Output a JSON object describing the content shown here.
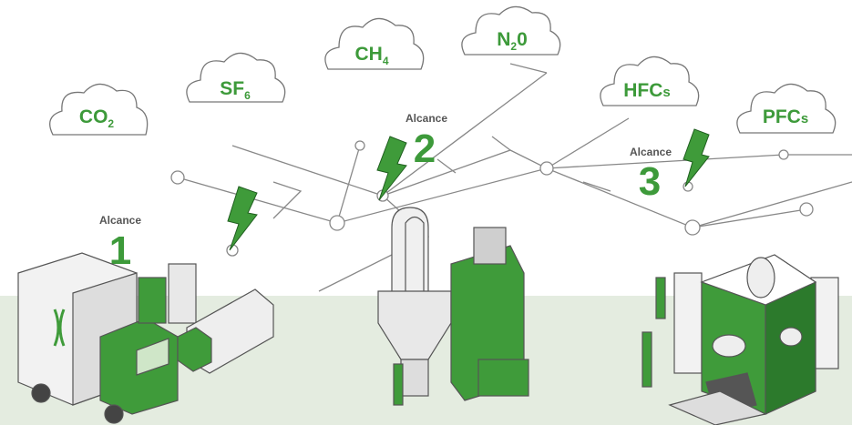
{
  "clouds": [
    {
      "parts": [
        "CO",
        "2"
      ]
    },
    {
      "parts": [
        "SF",
        "6"
      ]
    },
    {
      "parts": [
        "CH",
        "4"
      ]
    },
    {
      "parts": [
        "N",
        "2",
        "0"
      ]
    },
    {
      "parts": [
        "HFC",
        "s"
      ]
    },
    {
      "parts": [
        "PFC",
        "s"
      ]
    }
  ],
  "scopes": [
    {
      "label": "Alcance",
      "number": "1"
    },
    {
      "label": "Alcance",
      "number": "2"
    },
    {
      "label": "Alcance",
      "number": "3"
    }
  ]
}
